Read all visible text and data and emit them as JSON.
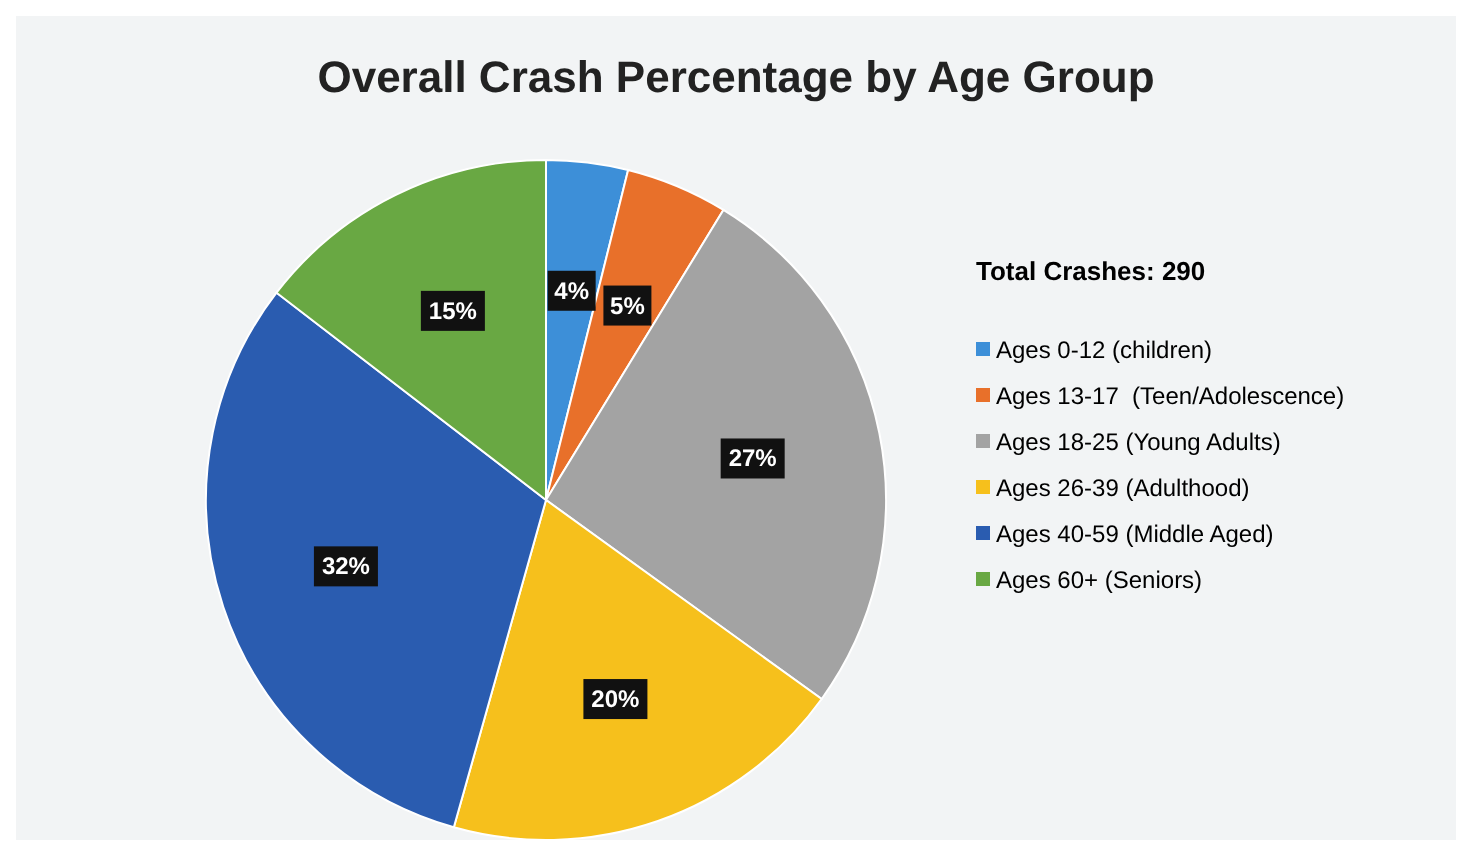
{
  "chart_data": {
    "type": "pie",
    "title": "Overall Crash Percentage by Age Group",
    "legend_title": "Total Crashes: 290",
    "categories": [
      "Ages 0-12 (children)",
      "Ages 13-17  (Teen/Adolescence)",
      "Ages 18-25 (Young Adults)",
      "Ages 26-39 (Adulthood)",
      "Ages 40-59 (Middle Aged)",
      "Ages 60+ (Seniors)"
    ],
    "values": [
      4,
      5,
      27,
      20,
      32,
      15
    ],
    "colors": [
      "#3d8fd8",
      "#e8702a",
      "#a3a3a3",
      "#f6c01c",
      "#2a5cb0",
      "#69a843"
    ],
    "value_labels": [
      "4%",
      "5%",
      "27%",
      "20%",
      "32%",
      "15%"
    ],
    "legend": "right"
  }
}
